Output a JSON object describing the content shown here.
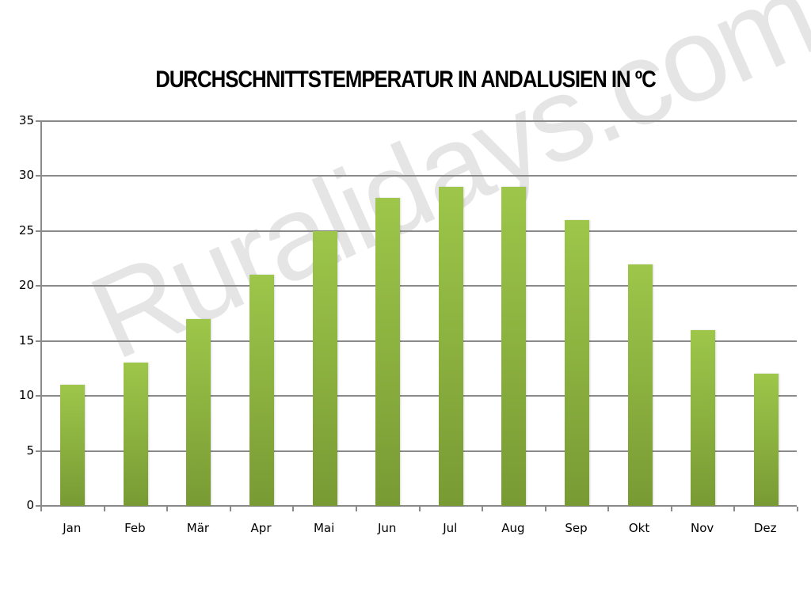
{
  "chart_data": {
    "type": "bar",
    "title": "DURCHSCHNITTSTEMPERATUR IN ANDALUSIEN IN ºC",
    "categories": [
      "Jan",
      "Feb",
      "Mär",
      "Apr",
      "Mai",
      "Jun",
      "Jul",
      "Aug",
      "Sep",
      "Okt",
      "Nov",
      "Dez"
    ],
    "values": [
      11,
      13,
      17,
      21,
      25,
      28,
      29,
      29,
      26,
      22,
      16,
      12
    ],
    "xlabel": "",
    "ylabel": "",
    "ylim": [
      0,
      35
    ],
    "yticks": [
      "0",
      "5",
      "10",
      "15",
      "20",
      "25",
      "30",
      "35"
    ],
    "grid": true,
    "legend": "none",
    "bar_color": "#8db340",
    "watermark": "Ruralidays.com"
  }
}
